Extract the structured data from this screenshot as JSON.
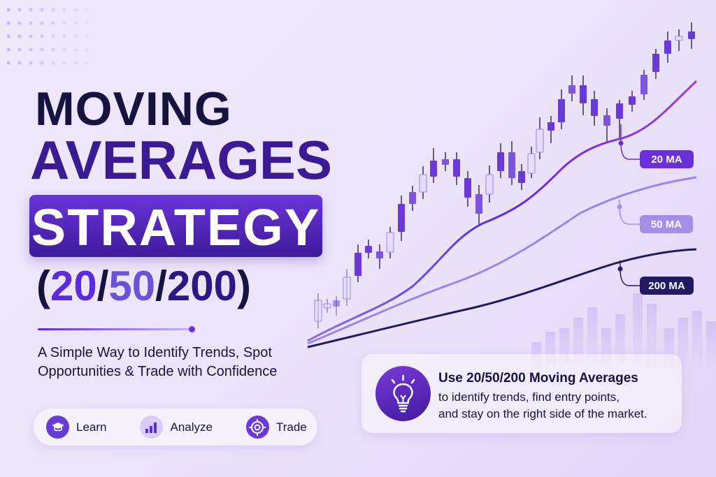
{
  "title": {
    "line1": "MOVING",
    "line2": "AVERAGES",
    "line3": "STRATEGY",
    "line4_open": "(",
    "line4_a": "20",
    "line4_s1": "/",
    "line4_b": "50",
    "line4_s2": "/",
    "line4_c": "200",
    "line4_close": ")"
  },
  "subtitle": "A Simple Way to Identify Trends, Spot Opportunities & Trade with Confidence",
  "pill": [
    {
      "label": "Learn",
      "icon": "graduation-cap-icon"
    },
    {
      "label": "Analyze",
      "icon": "bar-chart-icon"
    },
    {
      "label": "Trade",
      "icon": "target-icon"
    }
  ],
  "callout": {
    "heading": "Use 20/50/200 Moving Averages",
    "body_line1": "to identify trends, find entry points,",
    "body_line2": "and stay on the right side of the market.",
    "icon": "lightbulb-icon"
  },
  "ma_labels": [
    {
      "label": "20 MA",
      "color": "#6a2fd8"
    },
    {
      "label": "50 MA",
      "color": "#a48ee8"
    },
    {
      "label": "200 MA",
      "color": "#231a66"
    }
  ],
  "colors": {
    "accent": "#5b2be0",
    "dark": "#17133f",
    "light_candle": "#e6dcfa"
  }
}
